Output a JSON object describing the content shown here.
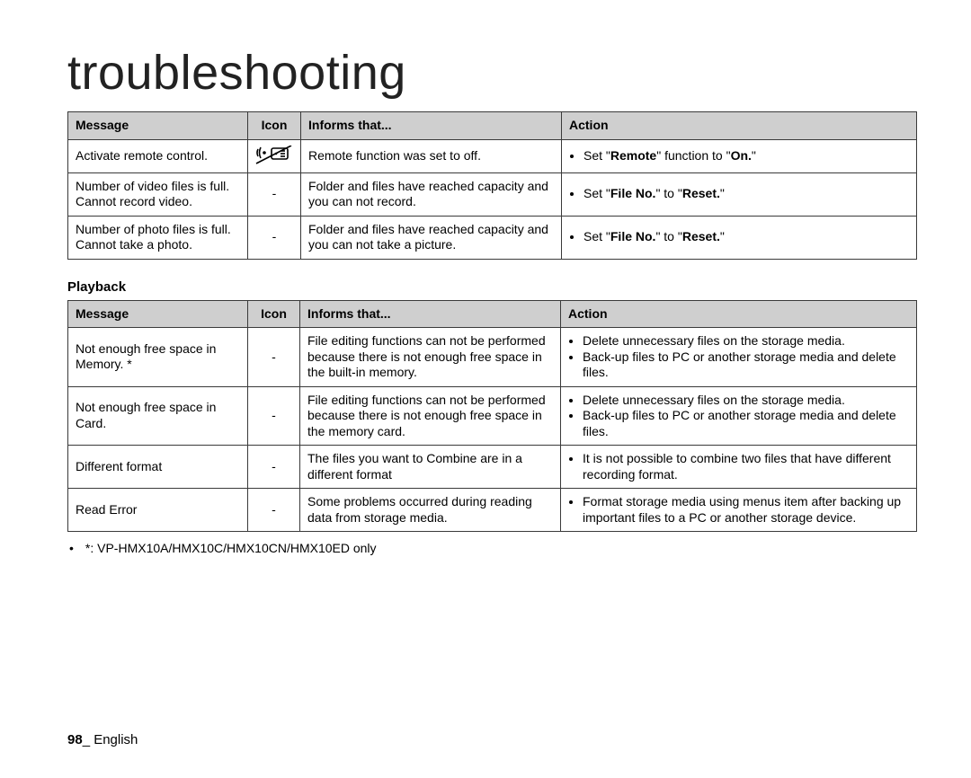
{
  "title": "troubleshooting",
  "table1": {
    "headers": {
      "message": "Message",
      "icon": "Icon",
      "informs": "Informs that...",
      "action": "Action"
    },
    "rows": [
      {
        "message": "Activate remote control.",
        "icon": "remote-off-icon",
        "informs": "Remote function was set to off.",
        "action_html": "Set \"<b>Remote</b>\" function to \"<b>On.</b>\""
      },
      {
        "message": "Number of video files is full. Cannot record video.",
        "icon": "-",
        "informs": "Folder and files have reached capacity and you can not record.",
        "action_html": "Set \"<b>File No.</b>\" to \"<b>Reset.</b>\""
      },
      {
        "message": "Number of photo files is full. Cannot take a photo.",
        "icon": "-",
        "informs": "Folder and files have reached capacity and you can not take a picture.",
        "action_html": "Set \"<b>File No.</b>\" to \"<b>Reset.</b>\""
      }
    ]
  },
  "section2": "Playback",
  "table2": {
    "headers": {
      "message": "Message",
      "icon": "Icon",
      "informs": "Informs that...",
      "action": "Action"
    },
    "rows": [
      {
        "message": "Not enough free space in Memory. *",
        "icon": "-",
        "informs": "File editing functions can not be performed because there is not enough free space in the built-in memory.",
        "actions": [
          "Delete unnecessary files on the storage media.",
          "Back-up files to PC or another storage media and delete files."
        ]
      },
      {
        "message": "Not enough free space in Card.",
        "icon": "-",
        "informs": "File editing functions can not be performed because there is not enough free space in the memory card.",
        "actions": [
          "Delete unnecessary files on the storage media.",
          "Back-up files to PC or another storage media and delete files."
        ]
      },
      {
        "message": "Different format",
        "icon": "-",
        "informs": "The files you want to Combine are in a different format",
        "actions": [
          "It is not possible to combine two files that have different recording format."
        ]
      },
      {
        "message": "Read Error",
        "icon": "-",
        "informs": "Some problems occurred during reading data from storage media.",
        "actions": [
          "Format storage media using menus item after backing up important files to a PC or another storage device."
        ]
      }
    ]
  },
  "footnote": "*: VP-HMX10A/HMX10C/HMX10CN/HMX10ED only",
  "footer": {
    "page": "98",
    "sep": "_ ",
    "lang": "English"
  },
  "colors": {
    "header_bg": "#cfcfcf",
    "border": "#3a3a3a",
    "text": "#000000",
    "page_bg": "#ffffff"
  }
}
